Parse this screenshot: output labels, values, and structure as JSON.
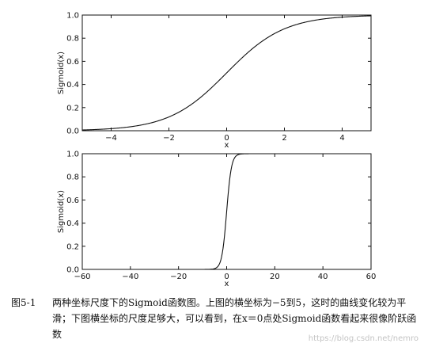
{
  "chart_data": [
    {
      "type": "line",
      "function": "sigmoid",
      "xlabel": "x",
      "ylabel": "Sigmoid(x)",
      "xlim": [
        -5,
        5
      ],
      "ylim": [
        0.0,
        1.0
      ],
      "xticks": [
        -4,
        -2,
        0,
        2,
        4
      ],
      "xtick_labels": [
        "−4",
        "−2",
        "0",
        "2",
        "4"
      ],
      "yticks": [
        0.0,
        0.2,
        0.4,
        0.6,
        0.8,
        1.0
      ],
      "ytick_labels": [
        "0.0",
        "0.2",
        "0.4",
        "0.6",
        "0.8",
        "1.0"
      ],
      "grid": false,
      "series": [
        {
          "x": [
            -5,
            -4,
            -3,
            -2,
            -1,
            0,
            1,
            2,
            3,
            4,
            5
          ],
          "y": [
            0.007,
            0.018,
            0.047,
            0.119,
            0.269,
            0.5,
            0.731,
            0.881,
            0.953,
            0.982,
            0.993
          ]
        }
      ]
    },
    {
      "type": "line",
      "function": "sigmoid",
      "xlabel": "x",
      "ylabel": "Sigmoid(x)",
      "xlim": [
        -60,
        60
      ],
      "ylim": [
        0.0,
        1.0
      ],
      "xticks": [
        -60,
        -40,
        -20,
        0,
        20,
        40,
        60
      ],
      "xtick_labels": [
        "−60",
        "−40",
        "−20",
        "0",
        "20",
        "40",
        "60"
      ],
      "yticks": [
        0.0,
        0.2,
        0.4,
        0.6,
        0.8,
        1.0
      ],
      "ytick_labels": [
        "0.0",
        "0.2",
        "0.4",
        "0.6",
        "0.8",
        "1.0"
      ],
      "grid": false,
      "series": [
        {
          "x": [
            -60,
            -20,
            -10,
            -5,
            -3,
            -2,
            -1,
            0,
            1,
            2,
            3,
            5,
            10,
            20,
            60
          ],
          "y": [
            0.0,
            0.0,
            0.0,
            0.007,
            0.047,
            0.119,
            0.269,
            0.5,
            0.731,
            0.881,
            0.953,
            0.993,
            1.0,
            1.0,
            1.0
          ]
        }
      ]
    }
  ],
  "caption": {
    "number": "图5-1",
    "text": "两种坐标尺度下的Sigmoid函数图。上图的横坐标为−5到5，这时的曲线变化较为平滑；下图横坐标的尺度足够大，可以看到，在x＝0点处Sigmoid函数看起来很像阶跃函数"
  },
  "watermark": "https://blog.csdn.net/nemro"
}
